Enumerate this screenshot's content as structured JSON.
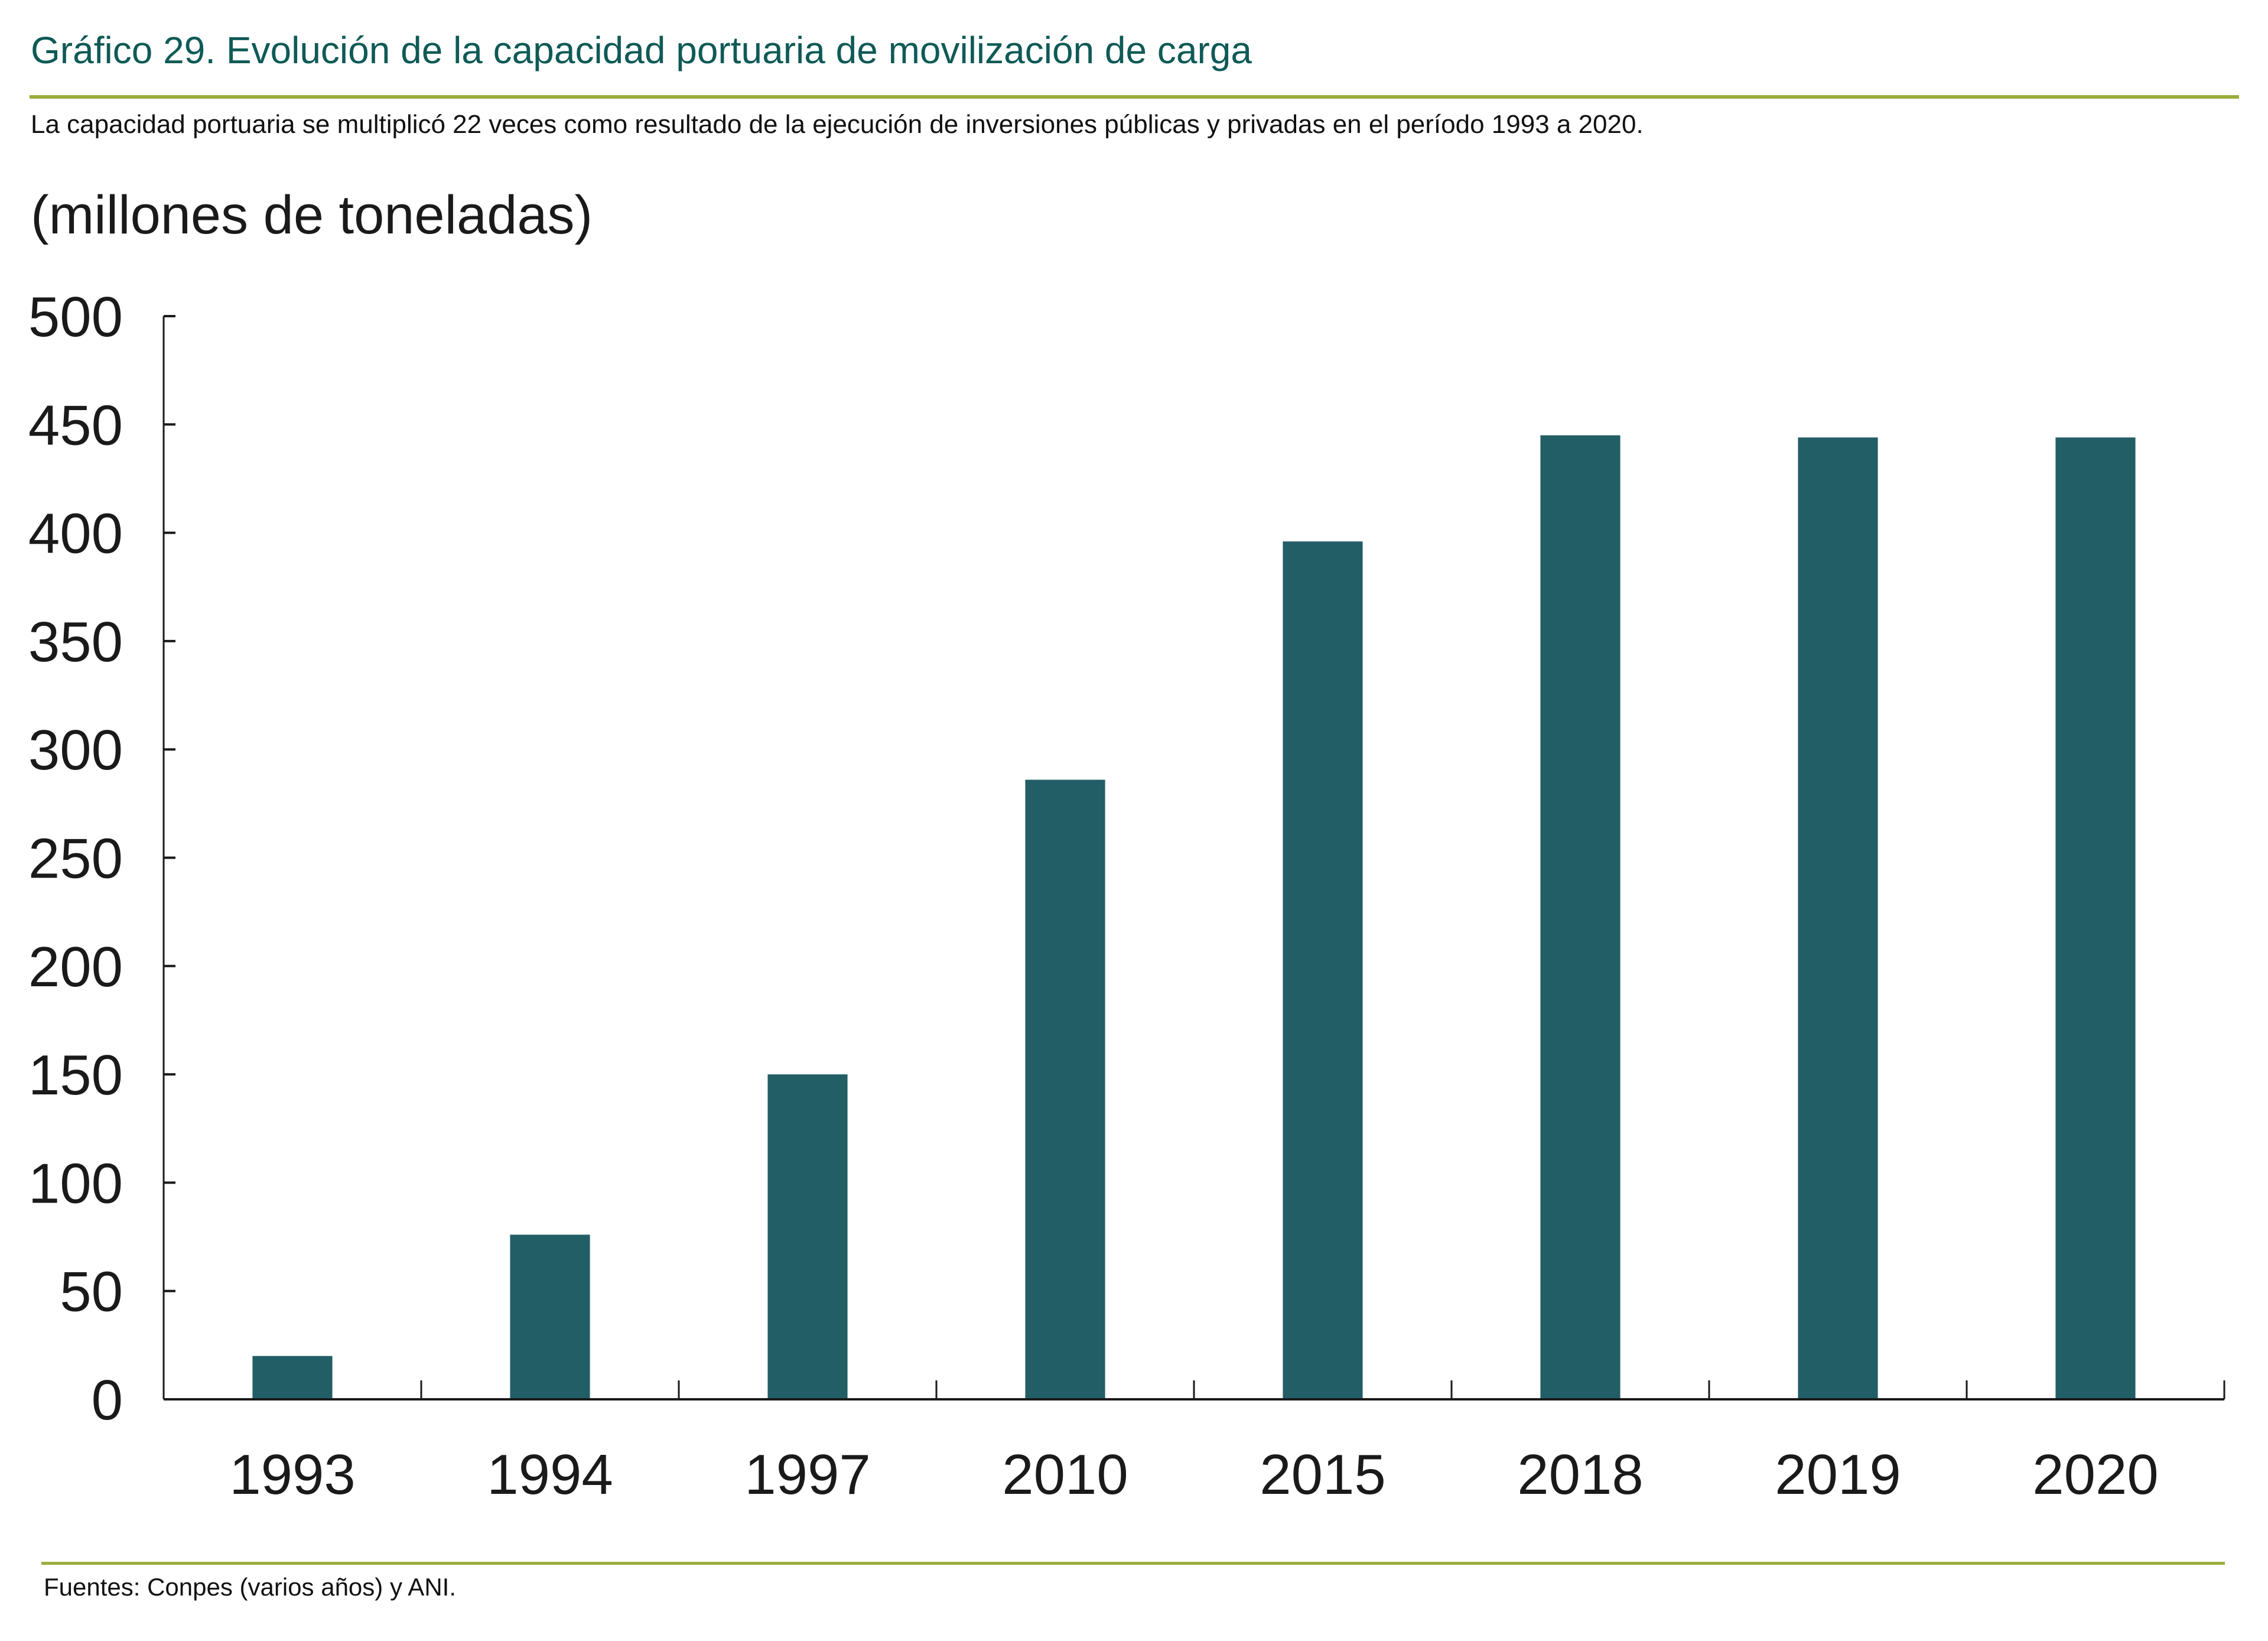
{
  "header": {
    "title": "Gráfico 29. Evolución de la capacidad portuaria de movilización de carga",
    "subtitle": "La capacidad portuaria se multiplicó 22 veces como resultado de la ejecución de inversiones públicas y privadas en el período 1993 a 2020."
  },
  "footer": {
    "source": "Fuentes: Conpes (varios años) y ANI."
  },
  "colors": {
    "bar": "#225e66",
    "title": "#0f5a56",
    "rule": "#9aad3c",
    "axis": "#1a1a1a"
  },
  "chart_data": {
    "type": "bar",
    "title": "Gráfico 29. Evolución de la capacidad portuaria de movilización de carga",
    "ylabel": "(millones de toneladas)",
    "xlabel": "",
    "categories": [
      "1993",
      "1994",
      "1997",
      "2010",
      "2015",
      "2018",
      "2019",
      "2020"
    ],
    "values": [
      20,
      76,
      150,
      286,
      396,
      445,
      444,
      444
    ],
    "ylim": [
      0,
      500
    ],
    "yticks": [
      0,
      50,
      100,
      150,
      200,
      250,
      300,
      350,
      400,
      450,
      500
    ],
    "ytick_labels": [
      "0",
      "50",
      "100",
      "150",
      "200",
      "250",
      "300",
      "350",
      "400",
      "450",
      "500"
    ],
    "grid": false,
    "legend": "none"
  }
}
